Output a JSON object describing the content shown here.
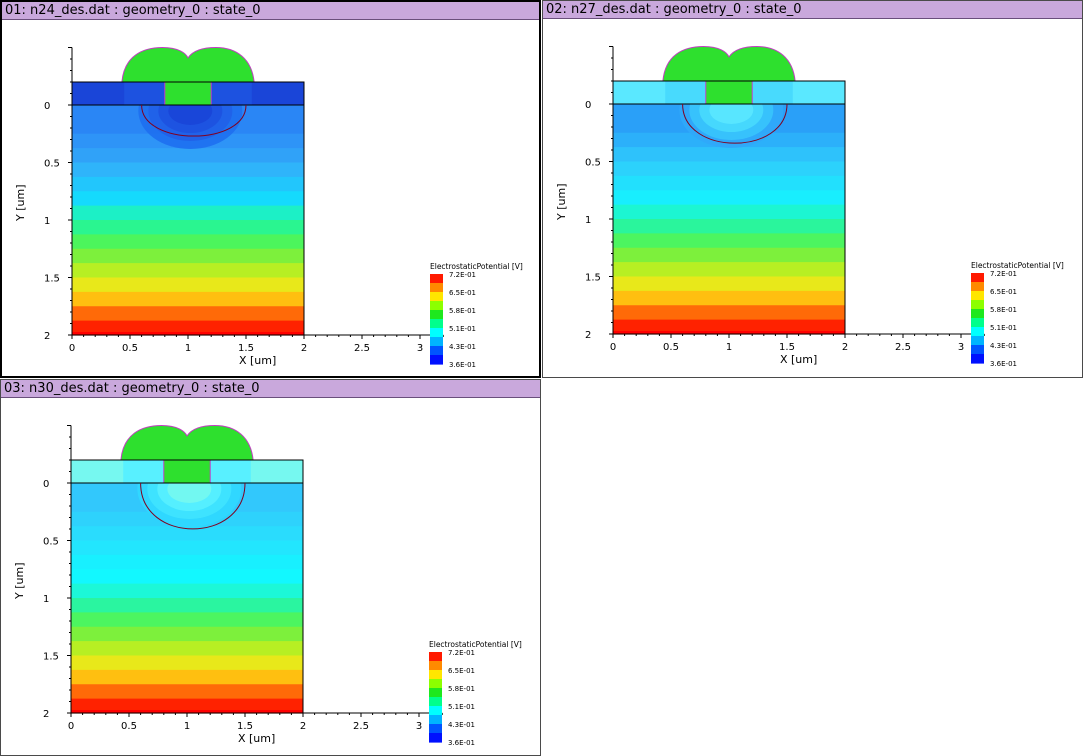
{
  "panels": [
    {
      "title": "01: n24_des.dat : geometry_0 : state_0",
      "active": true,
      "variant": "dark"
    },
    {
      "title": "02: n27_des.dat : geometry_0 : state_0",
      "active": false,
      "variant": "mid"
    },
    {
      "title": "03: n30_des.dat : geometry_0 : state_0",
      "active": false,
      "variant": "light"
    }
  ],
  "plot": {
    "xlabel": "X [um]",
    "ylabel": "Y [um]",
    "x_ticks": [
      "0",
      "0.5",
      "1",
      "1.5",
      "2",
      "2.5",
      "3"
    ],
    "y_ticks": [
      "0",
      "0.5",
      "1",
      "1.5",
      "2"
    ]
  },
  "legend": {
    "title": "ElectrostaticPotential [V]",
    "labels": [
      "7.2E-01",
      "6.5E-01",
      "5.8E-01",
      "5.1E-01",
      "4.3E-01",
      "3.6E-01"
    ],
    "colors": [
      "#ff1a00",
      "#ff8a00",
      "#ffe600",
      "#8cff00",
      "#1ee81e",
      "#00ff8c",
      "#00ffff",
      "#00b4ff",
      "#0055ff",
      "#0010ff"
    ]
  }
}
